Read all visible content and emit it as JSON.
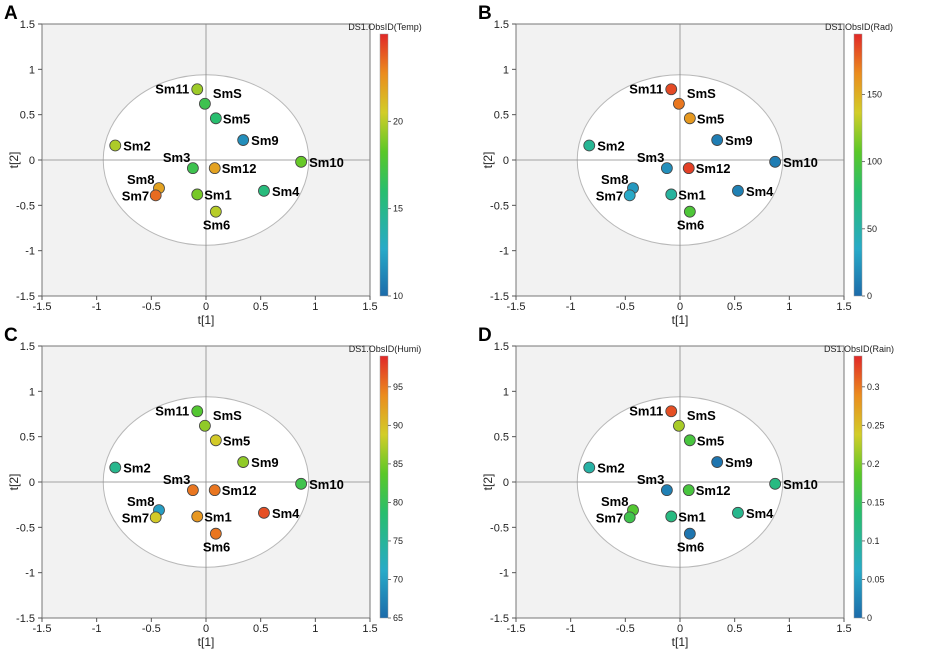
{
  "chart_data": [
    {
      "type": "scatter",
      "panel": "A",
      "xlabel": "t[1]",
      "ylabel": "t[2]",
      "xlim": [
        -1.5,
        1.5
      ],
      "ylim": [
        -1.5,
        1.5
      ],
      "xticks": [
        -1.5,
        -1,
        -0.5,
        0,
        0.5,
        1,
        1.5
      ],
      "yticks": [
        1.5,
        1,
        0.5,
        0,
        -0.5,
        -1,
        -1.5
      ],
      "colorbar": {
        "title": "DS1.ObsID(Temp)",
        "min": 10,
        "max": 25,
        "ticks": [
          20,
          15,
          10
        ]
      },
      "points": [
        {
          "label": "Sm11",
          "x": -0.08,
          "y": 0.78,
          "value": 19.5
        },
        {
          "label": "SmS",
          "x": -0.01,
          "y": 0.62,
          "value": 17.0
        },
        {
          "label": "Sm5",
          "x": 0.09,
          "y": 0.46,
          "value": 16.0
        },
        {
          "label": "Sm9",
          "x": 0.34,
          "y": 0.22,
          "value": 11.5
        },
        {
          "label": "Sm2",
          "x": -0.83,
          "y": 0.16,
          "value": 19.8
        },
        {
          "label": "Sm10",
          "x": 0.87,
          "y": -0.02,
          "value": 18.5
        },
        {
          "label": "Sm3",
          "x": -0.12,
          "y": -0.09,
          "value": 17.0
        },
        {
          "label": "Sm12",
          "x": 0.08,
          "y": -0.09,
          "value": 22.0
        },
        {
          "label": "Sm8",
          "x": -0.43,
          "y": -0.31,
          "value": 22.0
        },
        {
          "label": "Sm7",
          "x": -0.46,
          "y": -0.39,
          "value": 23.5
        },
        {
          "label": "Sm1",
          "x": -0.08,
          "y": -0.38,
          "value": 18.8
        },
        {
          "label": "Sm4",
          "x": 0.53,
          "y": -0.34,
          "value": 15.5
        },
        {
          "label": "Sm6",
          "x": 0.09,
          "y": -0.57,
          "value": 20.0
        }
      ]
    },
    {
      "type": "scatter",
      "panel": "B",
      "xlabel": "t[1]",
      "ylabel": "t[2]",
      "xlim": [
        -1.5,
        1.5
      ],
      "ylim": [
        -1.5,
        1.5
      ],
      "xticks": [
        -1.5,
        -1,
        -0.5,
        0,
        0.5,
        1,
        1.5
      ],
      "yticks": [
        1.5,
        1,
        0.5,
        0,
        -0.5,
        -1,
        -1.5
      ],
      "colorbar": {
        "title": "DS1.ObsID(Rad)",
        "min": 0,
        "max": 195,
        "ticks": [
          150,
          100,
          50,
          0
        ]
      },
      "points": [
        {
          "label": "Sm11",
          "x": -0.08,
          "y": 0.78,
          "value": 185
        },
        {
          "label": "SmS",
          "x": -0.01,
          "y": 0.62,
          "value": 172
        },
        {
          "label": "Sm5",
          "x": 0.09,
          "y": 0.46,
          "value": 160
        },
        {
          "label": "Sm9",
          "x": 0.34,
          "y": 0.22,
          "value": 10
        },
        {
          "label": "Sm2",
          "x": -0.83,
          "y": 0.16,
          "value": 60
        },
        {
          "label": "Sm10",
          "x": 0.87,
          "y": -0.02,
          "value": 10
        },
        {
          "label": "Sm3",
          "x": -0.12,
          "y": -0.09,
          "value": 20
        },
        {
          "label": "Sm12",
          "x": 0.08,
          "y": -0.09,
          "value": 188
        },
        {
          "label": "Sm8",
          "x": -0.43,
          "y": -0.31,
          "value": 25
        },
        {
          "label": "Sm7",
          "x": -0.46,
          "y": -0.39,
          "value": 35
        },
        {
          "label": "Sm1",
          "x": -0.08,
          "y": -0.38,
          "value": 55
        },
        {
          "label": "Sm4",
          "x": 0.53,
          "y": -0.34,
          "value": 12
        },
        {
          "label": "Sm6",
          "x": 0.09,
          "y": -0.57,
          "value": 100
        }
      ]
    },
    {
      "type": "scatter",
      "panel": "C",
      "xlabel": "t[1]",
      "ylabel": "t[2]",
      "xlim": [
        -1.5,
        1.5
      ],
      "ylim": [
        -1.5,
        1.5
      ],
      "xticks": [
        -1.5,
        -1,
        -0.5,
        0,
        0.5,
        1,
        1.5
      ],
      "yticks": [
        1.5,
        1,
        0.5,
        0,
        -0.5,
        -1,
        -1.5
      ],
      "colorbar": {
        "title": "DS1.ObsID(Humi)",
        "min": 65,
        "max": 99,
        "ticks": [
          95,
          90,
          85,
          80,
          75,
          70,
          65
        ]
      },
      "points": [
        {
          "label": "Sm11",
          "x": -0.08,
          "y": 0.78,
          "value": 83
        },
        {
          "label": "SmS",
          "x": -0.01,
          "y": 0.62,
          "value": 86
        },
        {
          "label": "Sm5",
          "x": 0.09,
          "y": 0.46,
          "value": 89
        },
        {
          "label": "Sm9",
          "x": 0.34,
          "y": 0.22,
          "value": 86
        },
        {
          "label": "Sm2",
          "x": -0.83,
          "y": 0.16,
          "value": 76
        },
        {
          "label": "Sm10",
          "x": 0.87,
          "y": -0.02,
          "value": 81
        },
        {
          "label": "Sm3",
          "x": -0.12,
          "y": -0.09,
          "value": 95
        },
        {
          "label": "Sm12",
          "x": 0.08,
          "y": -0.09,
          "value": 95
        },
        {
          "label": "Sm8",
          "x": -0.43,
          "y": -0.31,
          "value": 70
        },
        {
          "label": "Sm7",
          "x": -0.46,
          "y": -0.39,
          "value": 89
        },
        {
          "label": "Sm1",
          "x": -0.08,
          "y": -0.38,
          "value": 93
        },
        {
          "label": "Sm4",
          "x": 0.53,
          "y": -0.34,
          "value": 97
        },
        {
          "label": "Sm6",
          "x": 0.09,
          "y": -0.57,
          "value": 95
        }
      ]
    },
    {
      "type": "scatter",
      "panel": "D",
      "xlabel": "t[1]",
      "ylabel": "t[2]",
      "xlim": [
        -1.5,
        1.5
      ],
      "ylim": [
        -1.5,
        1.5
      ],
      "xticks": [
        -1.5,
        -1,
        -0.5,
        0,
        0.5,
        1,
        1.5
      ],
      "yticks": [
        1.5,
        1,
        0.5,
        0,
        -0.5,
        -1,
        -1.5
      ],
      "colorbar": {
        "title": "DS1.ObsID(Rain)",
        "min": 0,
        "max": 0.34,
        "ticks": [
          0.3,
          0.25,
          0.2,
          0.15,
          0.1,
          0.05,
          0
        ]
      },
      "points": [
        {
          "label": "Sm11",
          "x": -0.08,
          "y": 0.78,
          "value": 0.32
        },
        {
          "label": "SmS",
          "x": -0.01,
          "y": 0.62,
          "value": 0.22
        },
        {
          "label": "Sm5",
          "x": 0.09,
          "y": 0.46,
          "value": 0.17
        },
        {
          "label": "Sm9",
          "x": 0.34,
          "y": 0.22,
          "value": 0.01
        },
        {
          "label": "Sm2",
          "x": -0.83,
          "y": 0.16,
          "value": 0.09
        },
        {
          "label": "Sm10",
          "x": 0.87,
          "y": -0.02,
          "value": 0.12
        },
        {
          "label": "Sm3",
          "x": -0.12,
          "y": -0.09,
          "value": 0.02
        },
        {
          "label": "Sm12",
          "x": 0.08,
          "y": -0.09,
          "value": 0.17
        },
        {
          "label": "Sm8",
          "x": -0.43,
          "y": -0.31,
          "value": 0.18
        },
        {
          "label": "Sm7",
          "x": -0.46,
          "y": -0.39,
          "value": 0.16
        },
        {
          "label": "Sm1",
          "x": -0.08,
          "y": -0.38,
          "value": 0.12
        },
        {
          "label": "Sm4",
          "x": 0.53,
          "y": -0.34,
          "value": 0.11
        },
        {
          "label": "Sm6",
          "x": 0.09,
          "y": -0.57,
          "value": 0.01
        }
      ]
    }
  ]
}
